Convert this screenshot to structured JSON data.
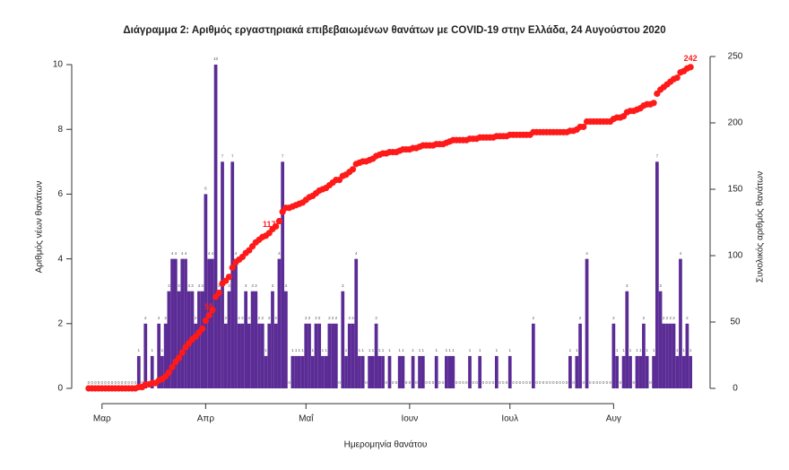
{
  "chart_data": {
    "type": "bar",
    "title": "Διάγραμμα 2: Αριθμός εργαστηριακά επιβεβαιωμένων θανάτων με COVID-19 στην Ελλάδα, 24 Αυγούστου 2020",
    "x_label": "Ημερομηνία θανάτου",
    "y_label": "Αριθμός νέων θανάτων",
    "y2_label": "Συνολικός αριθμός θανάτων",
    "categories": [
      null,
      null,
      null,
      null,
      "Μαρ",
      null,
      null,
      null,
      null,
      null,
      null,
      null,
      null,
      null,
      null,
      null,
      null,
      null,
      null,
      null,
      null,
      null,
      null,
      null,
      null,
      null,
      null,
      null,
      null,
      null,
      null,
      null,
      null,
      null,
      null,
      "Απρ",
      null,
      null,
      null,
      null,
      null,
      null,
      null,
      null,
      null,
      null,
      null,
      null,
      null,
      null,
      null,
      null,
      null,
      null,
      null,
      null,
      null,
      null,
      null,
      null,
      null,
      null,
      null,
      null,
      null,
      "Μαΐ",
      null,
      null,
      null,
      null,
      null,
      null,
      null,
      null,
      null,
      null,
      null,
      null,
      null,
      null,
      null,
      null,
      null,
      null,
      null,
      null,
      null,
      null,
      null,
      null,
      null,
      null,
      null,
      null,
      null,
      null,
      "Ιουν",
      null,
      null,
      null,
      null,
      null,
      null,
      null,
      null,
      null,
      null,
      null,
      null,
      null,
      null,
      null,
      null,
      null,
      null,
      null,
      null,
      null,
      null,
      null,
      null,
      null,
      null,
      null,
      null,
      null,
      "Ιουλ",
      null,
      null,
      null,
      null,
      null,
      null,
      null,
      null,
      null,
      null,
      null,
      null,
      null,
      null,
      null,
      null,
      null,
      null,
      null,
      null,
      null,
      null,
      null,
      null,
      null,
      null,
      null,
      null,
      null,
      null,
      "Αυγ",
      null,
      null,
      null,
      null,
      null,
      null,
      null,
      null,
      null,
      null,
      null,
      null,
      null,
      null,
      null,
      null,
      null,
      null,
      null,
      null,
      null,
      null,
      null
    ],
    "series": [
      {
        "type": "bar",
        "color": "#5b2c95",
        "values": [
          0,
          0,
          0,
          0,
          0,
          0,
          0,
          0,
          0,
          0,
          0,
          0,
          0,
          0,
          0,
          1,
          0,
          2,
          0,
          1,
          0,
          2,
          1,
          2,
          3,
          4,
          4,
          3,
          4,
          4,
          3,
          3,
          2,
          3,
          3,
          6,
          4,
          4,
          10,
          3,
          7,
          2,
          3,
          7,
          4,
          2,
          2,
          3,
          2,
          3,
          3,
          2,
          2,
          1,
          2,
          3,
          2,
          4,
          7,
          3,
          0,
          1,
          1,
          1,
          1,
          2,
          2,
          1,
          2,
          2,
          1,
          1,
          2,
          2,
          2,
          0,
          3,
          1,
          2,
          2,
          4,
          1,
          1,
          0,
          1,
          1,
          2,
          1,
          1,
          0,
          1,
          0,
          0,
          1,
          1,
          0,
          0,
          1,
          0,
          1,
          1,
          0,
          0,
          0,
          1,
          0,
          0,
          1,
          1,
          1,
          0,
          0,
          0,
          0,
          1,
          0,
          0,
          1,
          0,
          0,
          0,
          0,
          1,
          0,
          0,
          0,
          1,
          0,
          0,
          0,
          0,
          0,
          0,
          2,
          0,
          0,
          0,
          0,
          0,
          0,
          0,
          0,
          0,
          0,
          1,
          0,
          1,
          2,
          0,
          4,
          0,
          0,
          0,
          0,
          0,
          0,
          0,
          2,
          1,
          0,
          1,
          3,
          1,
          0,
          1,
          1,
          2,
          1,
          0,
          1,
          7,
          3,
          2,
          2,
          2,
          2,
          1,
          4,
          1,
          2,
          1
        ]
      },
      {
        "type": "line",
        "axis": "y2",
        "color": "#ff1a1a",
        "values": [
          0,
          0,
          0,
          0,
          0,
          0,
          0,
          0,
          0,
          0,
          0,
          0,
          0,
          0,
          0,
          1,
          1,
          3,
          3,
          4,
          4,
          6,
          7,
          9,
          12,
          16,
          20,
          23,
          27,
          31,
          34,
          37,
          39,
          42,
          45,
          51,
          55,
          59,
          69,
          72,
          79,
          81,
          84,
          91,
          95,
          97,
          99,
          102,
          104,
          107,
          110,
          112,
          114,
          115,
          117,
          120,
          122,
          126,
          133,
          136,
          136,
          137,
          138,
          139,
          140,
          142,
          144,
          145,
          147,
          149,
          150,
          151,
          153,
          155,
          157,
          157,
          160,
          161,
          163,
          165,
          169,
          170,
          171,
          171,
          172,
          173,
          175,
          176,
          177,
          177,
          178,
          178,
          178,
          179,
          180,
          180,
          180,
          181,
          181,
          182,
          183,
          183,
          183,
          183,
          184,
          184,
          184,
          185,
          186,
          187,
          187,
          187,
          187,
          187,
          188,
          188,
          188,
          189,
          189,
          189,
          189,
          189,
          190,
          190,
          190,
          190,
          191,
          191,
          191,
          191,
          191,
          191,
          191,
          193,
          193,
          193,
          193,
          193,
          193,
          193,
          193,
          193,
          193,
          193,
          194,
          194,
          195,
          197,
          197,
          201,
          201,
          201,
          201,
          201,
          201,
          201,
          201,
          203,
          204,
          204,
          205,
          208,
          209,
          209,
          210,
          211,
          213,
          214,
          214,
          215,
          222,
          225,
          227,
          229,
          231,
          233,
          234,
          238,
          239,
          241,
          242
        ],
        "value_labels": [
          null,
          null,
          null,
          null,
          null,
          null,
          null,
          null,
          null,
          null,
          null,
          null,
          null,
          null,
          null,
          null,
          null,
          null,
          null,
          null,
          null,
          null,
          null,
          null,
          null,
          null,
          null,
          null,
          null,
          null,
          null,
          null,
          null,
          null,
          null,
          null,
          "55",
          null,
          null,
          null,
          null,
          null,
          null,
          null,
          null,
          null,
          null,
          null,
          null,
          null,
          null,
          null,
          null,
          null,
          "117",
          null,
          null,
          null,
          null,
          null,
          null,
          null,
          null,
          null,
          null,
          null,
          null,
          null,
          null,
          null,
          null,
          null,
          null,
          null,
          null,
          null,
          null,
          null,
          null,
          null,
          null,
          null,
          null,
          null,
          null,
          null,
          null,
          null,
          null,
          null,
          null,
          null,
          null,
          null,
          null,
          null,
          null,
          null,
          null,
          null,
          null,
          null,
          null,
          null,
          null,
          null,
          null,
          null,
          null,
          null,
          null,
          null,
          null,
          null,
          null,
          null,
          null,
          null,
          null,
          null,
          null,
          null,
          null,
          null,
          null,
          null,
          null,
          null,
          null,
          null,
          null,
          null,
          null,
          null,
          null,
          null,
          null,
          null,
          null,
          null,
          null,
          null,
          null,
          null,
          null,
          null,
          null,
          null,
          null,
          null,
          null,
          null,
          null,
          null,
          null,
          null,
          null,
          null,
          null,
          null,
          null,
          null,
          null,
          null,
          null,
          null,
          null,
          null,
          null,
          null,
          null,
          null,
          null,
          null,
          null,
          null,
          null,
          null,
          null,
          null,
          "242"
        ]
      }
    ],
    "ylim": [
      0,
      10.25
    ],
    "yticks": [
      0,
      2,
      4,
      6,
      8,
      10
    ],
    "y2lim": [
      0,
      250
    ],
    "y2ticks": [
      0,
      50,
      100,
      150,
      200,
      250
    ]
  }
}
